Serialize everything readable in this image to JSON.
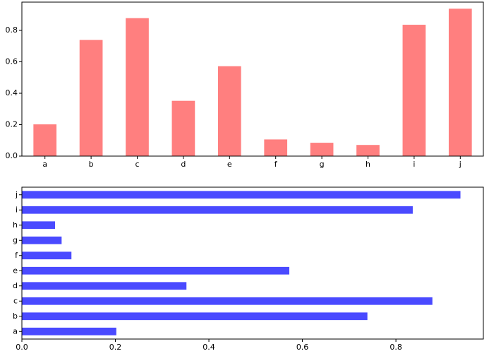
{
  "chart_data": [
    {
      "type": "bar",
      "categories": [
        "a",
        "b",
        "c",
        "d",
        "e",
        "f",
        "g",
        "h",
        "i",
        "j"
      ],
      "values": [
        0.202,
        0.739,
        0.878,
        0.352,
        0.572,
        0.106,
        0.085,
        0.071,
        0.836,
        0.938
      ],
      "color": "#ff7f7f",
      "ylim": [
        0,
        0.98
      ],
      "yticks": [
        {
          "value": 0,
          "label": "0.0"
        },
        0.2,
        0.4,
        0.6,
        0.8
      ]
    },
    {
      "type": "barh",
      "categories": [
        "a",
        "b",
        "c",
        "d",
        "e",
        "f",
        "g",
        "h",
        "i",
        "j"
      ],
      "values": [
        0.202,
        0.739,
        0.878,
        0.352,
        0.572,
        0.106,
        0.085,
        0.071,
        0.836,
        0.938
      ],
      "color": "#4a4aff",
      "xlim": [
        0,
        0.987
      ],
      "xticks": [
        {
          "value": 0,
          "label": "0.0"
        },
        0.2,
        0.4,
        0.6,
        0.8
      ]
    }
  ]
}
